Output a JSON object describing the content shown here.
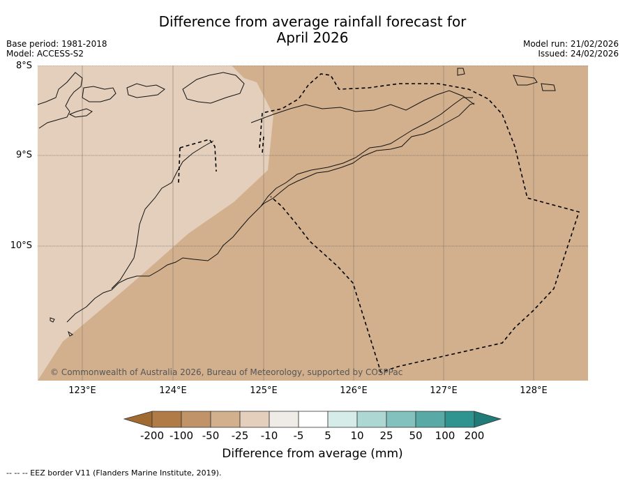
{
  "title_line1": "Difference from average rainfall forecast for",
  "title_line2": "April 2026",
  "base_period": "Base period: 1981-2018",
  "model": "Model: ACCESS-S2",
  "model_run": "Model run: 21/02/2026",
  "issued": "Issued: 24/02/2026",
  "copyright": "© Commonwealth of Australia 2026, Bureau of Meteorology, supported by COSPPac",
  "lat_labels": [
    "8°S",
    "9°S",
    "10°S"
  ],
  "lon_labels": [
    "123°E",
    "124°E",
    "125°E",
    "126°E",
    "127°E",
    "128°E"
  ],
  "legend": {
    "title": "Difference from average (mm)",
    "ticks": [
      "-200",
      "-100",
      "-50",
      "-25",
      "-10",
      "-5",
      "5",
      "10",
      "25",
      "50",
      "100",
      "200"
    ],
    "colors": [
      "#a06a30",
      "#b07b46",
      "#c09468",
      "#d2b08e",
      "#e3cfbb",
      "#efebe6",
      "#ffffff",
      "#d6ece9",
      "#add7d3",
      "#82c1bd",
      "#59aaa7",
      "#2f9390",
      "#207b79"
    ]
  },
  "footer": "-- -- -- EEZ border V11 (Flanders Marine Institute, 2019).",
  "map_colors": {
    "ocean_main": "#d2b08e",
    "ocean_light": "#e3cfbb"
  }
}
